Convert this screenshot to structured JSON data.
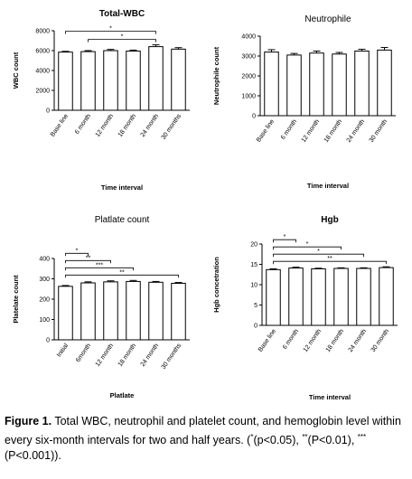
{
  "chart_data": [
    {
      "type": "bar",
      "title": "Total-WBC",
      "title_bold": true,
      "ylabel": "WBC count",
      "xlabel": "Time interval",
      "categories": [
        "Base line",
        "6 month",
        "12 month",
        "18 month",
        "24 month",
        "30 months"
      ],
      "values": [
        5850,
        5900,
        6000,
        5950,
        6400,
        6150
      ],
      "errors": [
        80,
        100,
        120,
        100,
        180,
        150
      ],
      "ylim": [
        0,
        8000
      ],
      "yticks": [
        "0",
        "2000",
        "4000",
        "6000",
        "8000"
      ],
      "significance": [
        {
          "from": 0,
          "to": 4,
          "label": "*"
        },
        {
          "from": 1,
          "to": 4,
          "label": "*"
        }
      ]
    },
    {
      "type": "bar",
      "title": "Neutrophile",
      "title_bold": false,
      "ylabel": "Neutrophile count",
      "xlabel": "Time interval",
      "categories": [
        "Base line",
        "6 month",
        "12 month",
        "18 month",
        "24 month",
        "30 month"
      ],
      "values": [
        3200,
        3050,
        3150,
        3100,
        3250,
        3300
      ],
      "errors": [
        120,
        80,
        100,
        80,
        90,
        130
      ],
      "ylim": [
        0,
        4000
      ],
      "yticks": [
        "0",
        "1000",
        "2000",
        "3000",
        "4000"
      ],
      "significance": []
    },
    {
      "type": "bar",
      "title": "Platlate count",
      "title_bold": false,
      "ylabel": "Platelate count",
      "xlabel": "Platlate",
      "categories": [
        "Initial",
        "6month",
        "12 month",
        "18 month",
        "24 month",
        "30 months"
      ],
      "values": [
        263,
        280,
        285,
        287,
        283,
        278
      ],
      "errors": [
        4,
        5,
        5,
        5,
        4,
        4
      ],
      "ylim": [
        0,
        400
      ],
      "yticks": [
        "0",
        "100",
        "200",
        "300",
        "400"
      ],
      "significance": [
        {
          "from": 0,
          "to": 1,
          "label": "*"
        },
        {
          "from": 0,
          "to": 2,
          "label": "**"
        },
        {
          "from": 0,
          "to": 3,
          "label": "***"
        },
        {
          "from": 0,
          "to": 5,
          "label": "**"
        }
      ]
    },
    {
      "type": "bar",
      "title": "Hgb",
      "title_bold": true,
      "ylabel": "Hgb concetration",
      "xlabel": "Time interval",
      "categories": [
        "Base line",
        "6 month",
        "12 month",
        "18 month",
        "24 month",
        "30 month"
      ],
      "values": [
        13.7,
        14.1,
        13.9,
        14.0,
        14.0,
        14.2
      ],
      "errors": [
        0.2,
        0.2,
        0.15,
        0.15,
        0.15,
        0.2
      ],
      "ylim": [
        0,
        20
      ],
      "yticks": [
        "0",
        "5",
        "10",
        "15",
        "20"
      ],
      "significance": [
        {
          "from": 0,
          "to": 1,
          "label": "*"
        },
        {
          "from": 0,
          "to": 3,
          "label": "*"
        },
        {
          "from": 0,
          "to": 4,
          "label": "*"
        },
        {
          "from": 0,
          "to": 5,
          "label": "**"
        }
      ]
    }
  ],
  "caption": {
    "label": "Figure 1.",
    "text_before": " Total WBC, neutrophil and platelet count, and hemoglobin level within every six-month intervals for two and half years. (",
    "s1": "*",
    "p1": "(p<0.05), ",
    "s2": "**",
    "p2": "(P<0.01), ",
    "s3": "***",
    "p3": "(P<0.001))."
  }
}
